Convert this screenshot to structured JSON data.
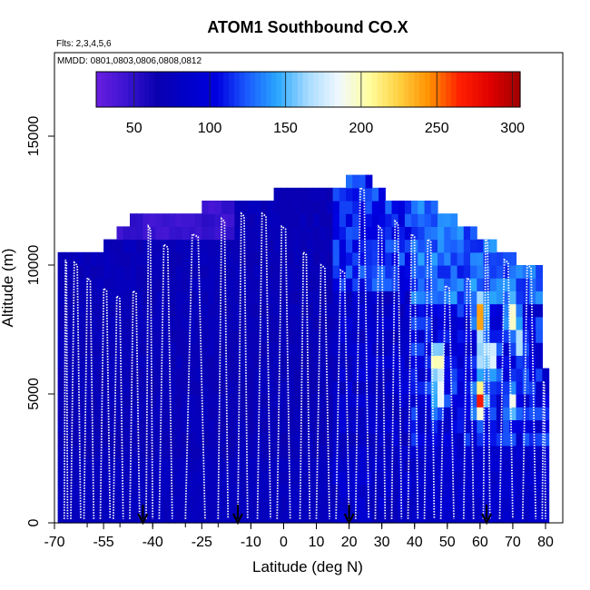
{
  "chart_data": {
    "type": "heatmap",
    "title": "ATOM1 Southbound CO.X",
    "flights_note": "Flts: 2,3,4,5,6",
    "dates_note": "MMDD: 0801,0803,0806,0808,0812",
    "xlabel": "Latitude (deg N)",
    "ylabel": "Altitude (m)",
    "xlim": [
      -70,
      85
    ],
    "ylim": [
      0,
      18000
    ],
    "x_ticks": [
      -70,
      -55,
      -40,
      -25,
      -10,
      0,
      10,
      20,
      30,
      40,
      50,
      60,
      70,
      80
    ],
    "y_ticks": [
      0,
      5000,
      10000,
      15000
    ],
    "colorbar": {
      "min": 25,
      "max": 305,
      "ticks": [
        50,
        100,
        150,
        200,
        250,
        300
      ],
      "colors": [
        "#6a1ee0",
        "#3a14d0",
        "#0a00b0",
        "#0000c8",
        "#0000e0",
        "#1a5cff",
        "#2aa8ff",
        "#a8dcff",
        "#f0f8ff",
        "#ffffa0",
        "#ffd040",
        "#ff9000",
        "#ff2000",
        "#e00000",
        "#a00000"
      ]
    },
    "column_tops": [
      {
        "lat": -67,
        "top": 10500
      },
      {
        "lat": -62,
        "top": 10500
      },
      {
        "lat": -58,
        "top": 10500
      },
      {
        "lat": -54,
        "top": 11000
      },
      {
        "lat": -50,
        "top": 11500
      },
      {
        "lat": -44,
        "top": 12000
      },
      {
        "lat": -36,
        "top": 12000
      },
      {
        "lat": -28,
        "top": 12000
      },
      {
        "lat": -24,
        "top": 12500
      },
      {
        "lat": -16,
        "top": 12500
      },
      {
        "lat": -8,
        "top": 12500
      },
      {
        "lat": 2,
        "top": 13000
      },
      {
        "lat": 14,
        "top": 13000
      },
      {
        "lat": 24,
        "top": 13500
      },
      {
        "lat": 28,
        "top": 13000
      },
      {
        "lat": 34,
        "top": 12500
      },
      {
        "lat": 42,
        "top": 12500
      },
      {
        "lat": 50,
        "top": 12000
      },
      {
        "lat": 56,
        "top": 11500
      },
      {
        "lat": 62,
        "top": 11000
      },
      {
        "lat": 68,
        "top": 10500
      },
      {
        "lat": 74,
        "top": 10000
      },
      {
        "lat": 78,
        "top": 10000
      },
      {
        "lat": 80,
        "top": 6000
      }
    ],
    "profiles": [
      {
        "lat_start": -67,
        "lat_end": -66,
        "alt_top": 10200
      },
      {
        "lat_start": -65,
        "lat_end": -62,
        "alt_top": 10100
      },
      {
        "lat_start": -61,
        "lat_end": -58,
        "alt_top": 9500
      },
      {
        "lat_start": -56,
        "lat_end": -53,
        "alt_top": 9100
      },
      {
        "lat_start": -52,
        "lat_end": -49,
        "alt_top": 8800
      },
      {
        "lat_start": -47,
        "lat_end": -44,
        "alt_top": 9000
      },
      {
        "lat_start": -42,
        "lat_end": -40,
        "alt_top": 11500
      },
      {
        "lat_start": -38,
        "lat_end": -34,
        "alt_top": 10800
      },
      {
        "lat_start": -30,
        "lat_end": -24,
        "alt_top": 11200
      },
      {
        "lat_start": -20,
        "lat_end": -17,
        "alt_top": 11800
      },
      {
        "lat_start": -14,
        "lat_end": -11,
        "alt_top": 12000
      },
      {
        "lat_start": -8,
        "lat_end": -4,
        "alt_top": 12000
      },
      {
        "lat_start": -2,
        "lat_end": 2,
        "alt_top": 11500
      },
      {
        "lat_start": 5,
        "lat_end": 8,
        "alt_top": 10500
      },
      {
        "lat_start": 10,
        "lat_end": 14,
        "alt_top": 10000
      },
      {
        "lat_start": 16,
        "lat_end": 20,
        "alt_top": 9800
      },
      {
        "lat_start": 22,
        "lat_end": 26,
        "alt_top": 13000
      },
      {
        "lat_start": 28,
        "lat_end": 31,
        "alt_top": 11500
      },
      {
        "lat_start": 33,
        "lat_end": 36,
        "alt_top": 11700
      },
      {
        "lat_start": 38,
        "lat_end": 41,
        "alt_top": 11200
      },
      {
        "lat_start": 43,
        "lat_end": 46,
        "alt_top": 11000
      },
      {
        "lat_start": 48,
        "lat_end": 52,
        "alt_top": 9200
      },
      {
        "lat_start": 55,
        "lat_end": 58,
        "alt_top": 9500
      },
      {
        "lat_start": 61,
        "lat_end": 63,
        "alt_top": 11000
      },
      {
        "lat_start": 66,
        "lat_end": 70,
        "alt_top": 10200
      },
      {
        "lat_start": 73,
        "lat_end": 77,
        "alt_top": 10000
      },
      {
        "lat_start": 79,
        "lat_end": 80,
        "alt_top": 5500
      }
    ],
    "hotspots": [
      {
        "lat": 47,
        "alt": 6200,
        "value": 240
      },
      {
        "lat": 47.5,
        "alt": 5000,
        "value": 200
      },
      {
        "lat": 60,
        "alt": 8000,
        "value": 260
      },
      {
        "lat": 60,
        "alt": 4800,
        "value": 270
      },
      {
        "lat": 61,
        "alt": 6500,
        "value": 200
      },
      {
        "lat": 64,
        "alt": 6500,
        "value": 190
      },
      {
        "lat": 70,
        "alt": 8000,
        "value": 210
      },
      {
        "lat": 70,
        "alt": 4700,
        "value": 190
      },
      {
        "lat": 72,
        "alt": 7000,
        "value": 175
      }
    ],
    "arrows": [
      -43,
      -14,
      20,
      62
    ]
  }
}
